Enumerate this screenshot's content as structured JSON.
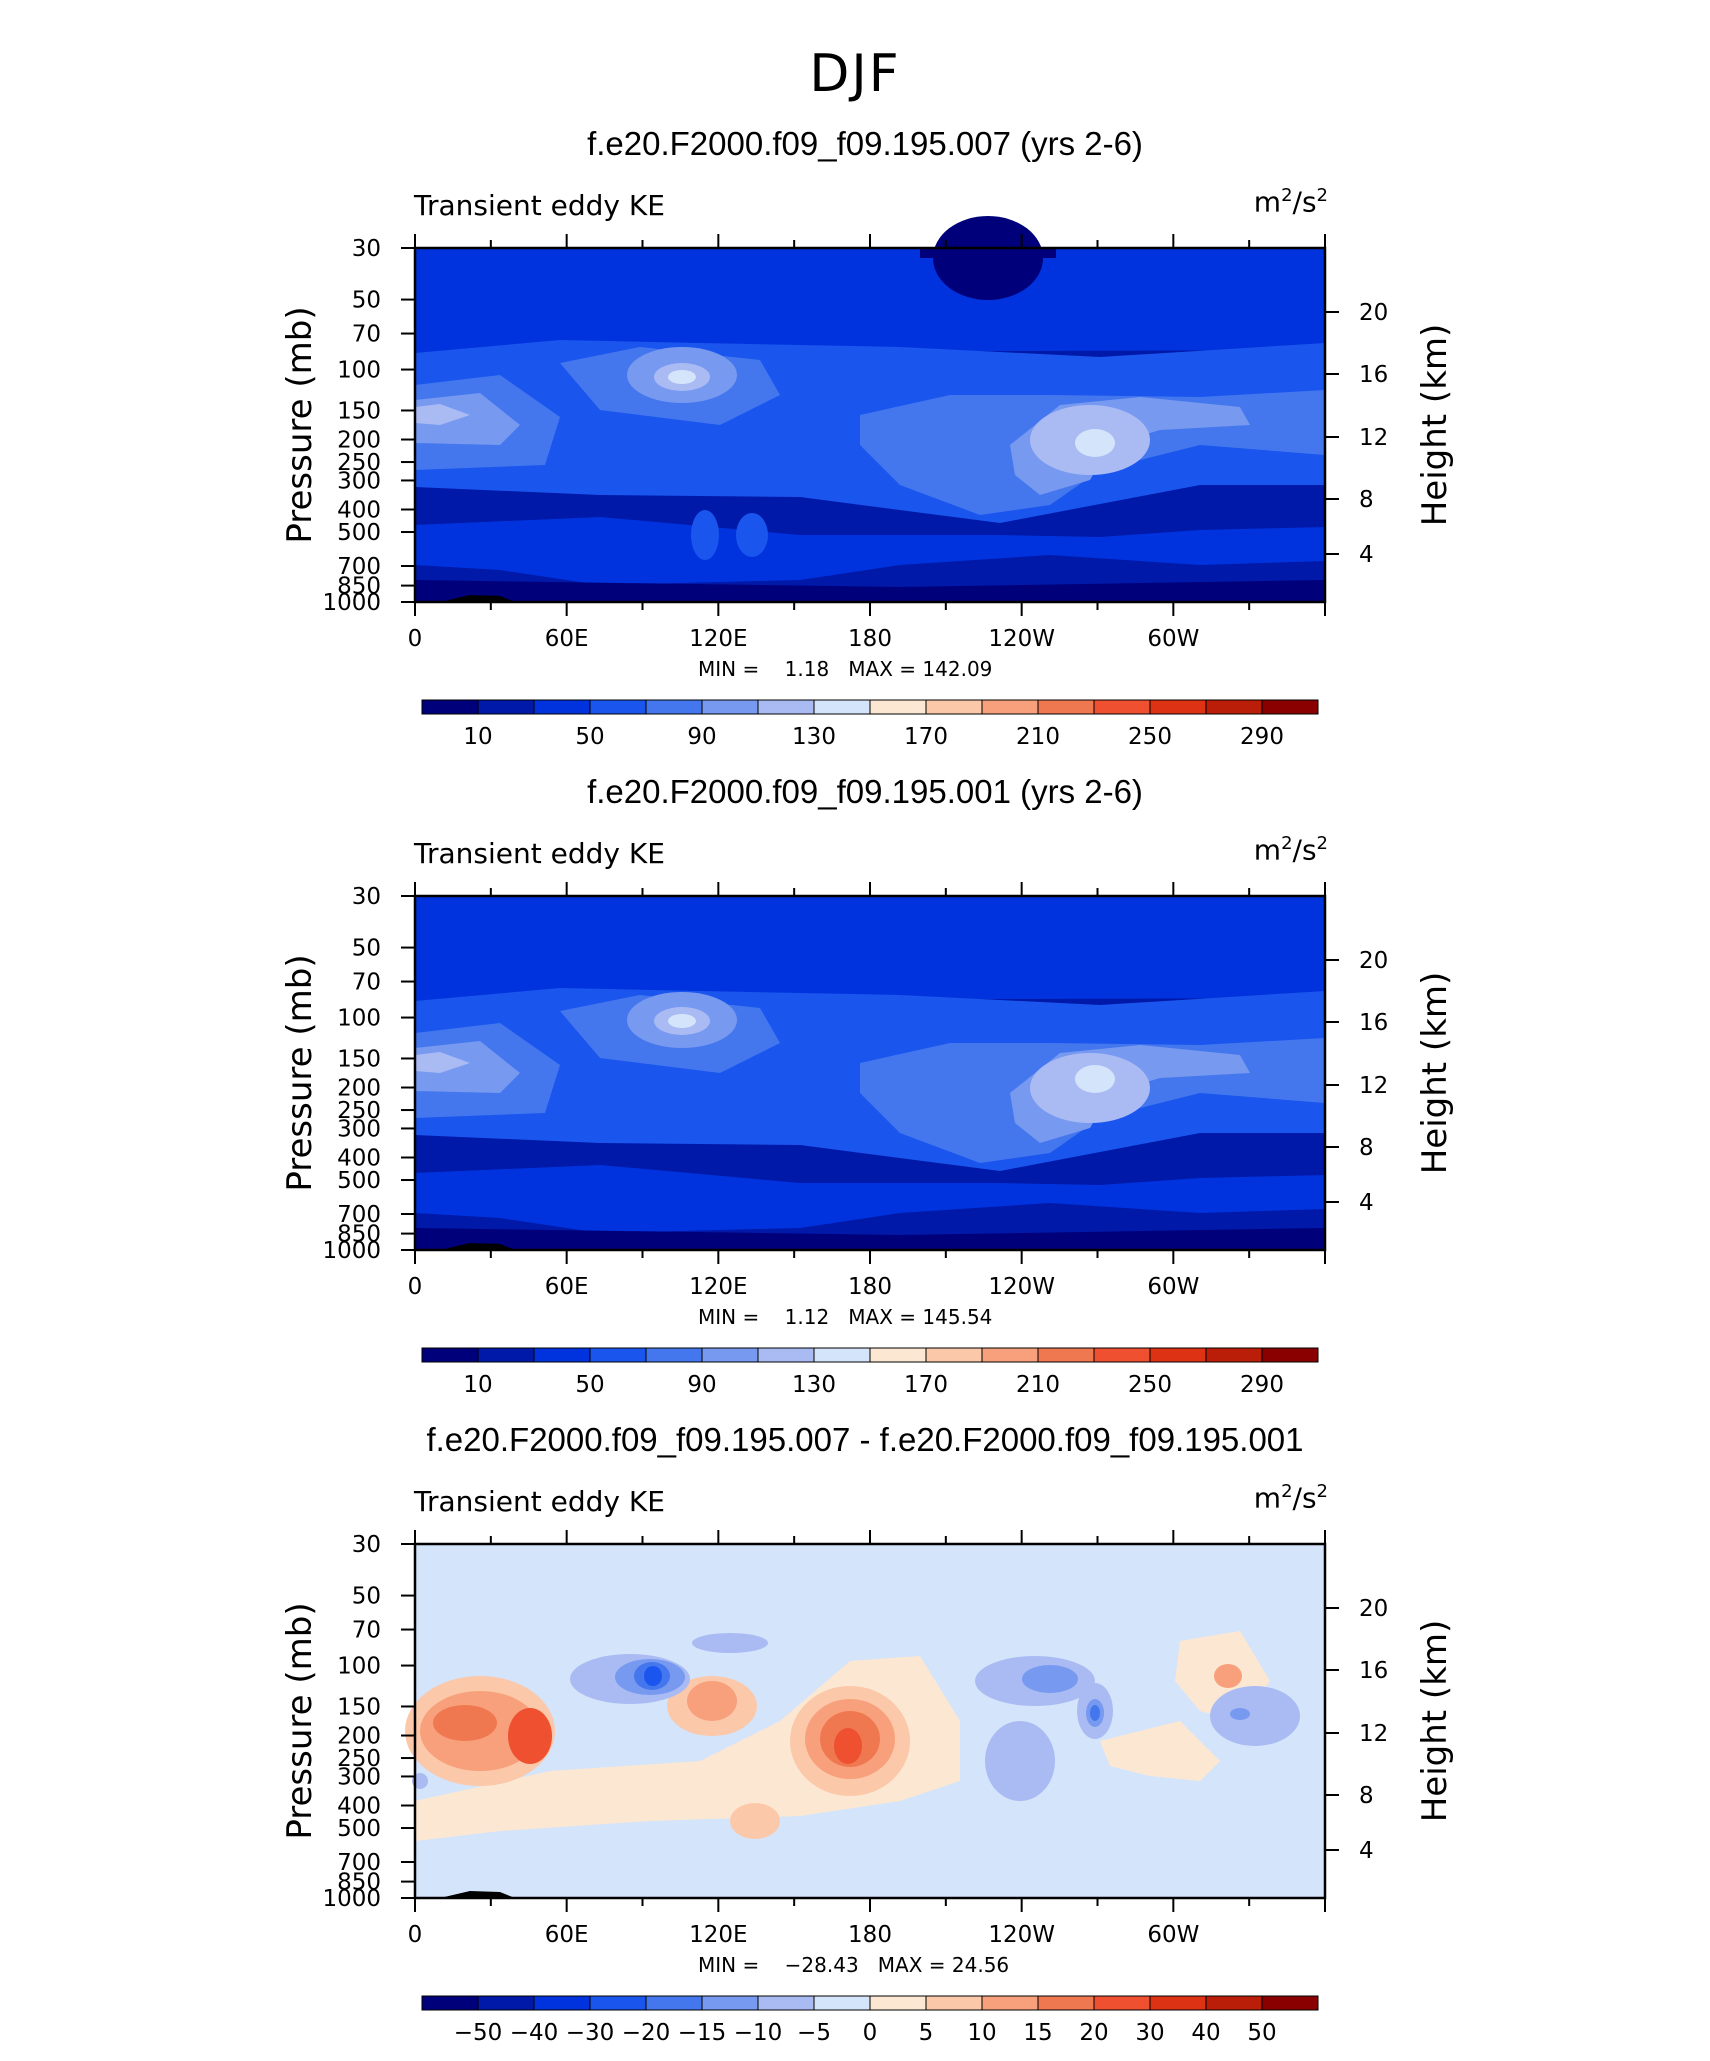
{
  "figure_title": "DJF",
  "chart_data": [
    {
      "type": "heatmap",
      "title": "f.e20.F2000.f09_f09.195.007 (yrs 2-6)",
      "variable": "Transient eddy KE",
      "units": "m2/s2",
      "ylabel": "Pressure (mb)",
      "ylabel_right": "Height (km)",
      "x_ticks": [
        "0",
        "60E",
        "120E",
        "180",
        "120W",
        "60W"
      ],
      "y_ticks": [
        "30",
        "50",
        "70",
        "100",
        "150",
        "200",
        "250",
        "300",
        "400",
        "500",
        "700",
        "850",
        "1000"
      ],
      "y_right_ticks": [
        "20",
        "16",
        "12",
        "8",
        "4"
      ],
      "min_label": "MIN =",
      "min": "1.18",
      "max_label": "MAX =",
      "max": "142.09",
      "colorbar_labels": [
        "10",
        "50",
        "90",
        "130",
        "170",
        "210",
        "250",
        "290"
      ],
      "colorbar_colors": [
        "#00007a",
        "#0019a8",
        "#0033dd",
        "#1a55ee",
        "#4477ee",
        "#7799f0",
        "#aabbf4",
        "#d4e4fa",
        "#fce8d2",
        "#fcc8aa",
        "#f8a07c",
        "#f07850",
        "#ee5030",
        "#dd3214",
        "#bb1e08",
        "#8a0000"
      ],
      "has_zero_bin": false
    },
    {
      "type": "heatmap",
      "title": "f.e20.F2000.f09_f09.195.001 (yrs 2-6)",
      "variable": "Transient eddy KE",
      "units": "m2/s2",
      "ylabel": "Pressure (mb)",
      "ylabel_right": "Height (km)",
      "x_ticks": [
        "0",
        "60E",
        "120E",
        "180",
        "120W",
        "60W"
      ],
      "y_ticks": [
        "30",
        "50",
        "70",
        "100",
        "150",
        "200",
        "250",
        "300",
        "400",
        "500",
        "700",
        "850",
        "1000"
      ],
      "y_right_ticks": [
        "20",
        "16",
        "12",
        "8",
        "4"
      ],
      "min_label": "MIN =",
      "min": "1.12",
      "max_label": "MAX =",
      "max": "145.54",
      "colorbar_labels": [
        "10",
        "50",
        "90",
        "130",
        "170",
        "210",
        "250",
        "290"
      ],
      "colorbar_colors": [
        "#00007a",
        "#0019a8",
        "#0033dd",
        "#1a55ee",
        "#4477ee",
        "#7799f0",
        "#aabbf4",
        "#d4e4fa",
        "#fce8d2",
        "#fcc8aa",
        "#f8a07c",
        "#f07850",
        "#ee5030",
        "#dd3214",
        "#bb1e08",
        "#8a0000"
      ],
      "has_zero_bin": false
    },
    {
      "type": "heatmap",
      "title": "f.e20.F2000.f09_f09.195.007 - f.e20.F2000.f09_f09.195.001",
      "variable": "Transient eddy KE",
      "units": "m2/s2",
      "ylabel": "Pressure (mb)",
      "ylabel_right": "Height (km)",
      "x_ticks": [
        "0",
        "60E",
        "120E",
        "180",
        "120W",
        "60W"
      ],
      "y_ticks": [
        "30",
        "50",
        "70",
        "100",
        "150",
        "200",
        "250",
        "300",
        "400",
        "500",
        "700",
        "850",
        "1000"
      ],
      "y_right_ticks": [
        "20",
        "16",
        "12",
        "8",
        "4"
      ],
      "min_label": "MIN =",
      "min": "−28.43",
      "max_label": "MAX =",
      "max": "24.56",
      "colorbar_labels": [
        "−50",
        "−40",
        "−30",
        "−20",
        "−15",
        "−10",
        "−5",
        "0",
        "5",
        "10",
        "15",
        "20",
        "30",
        "40",
        "50"
      ],
      "colorbar_colors": [
        "#00007a",
        "#0019a8",
        "#0033dd",
        "#1a55ee",
        "#4477ee",
        "#7799f0",
        "#aabbf4",
        "#d4e4fa",
        "#fce8d2",
        "#fcc8aa",
        "#f8a07c",
        "#f07850",
        "#ee5030",
        "#dd3214",
        "#bb1e08",
        "#8a0000"
      ],
      "has_zero_bin": true
    }
  ]
}
